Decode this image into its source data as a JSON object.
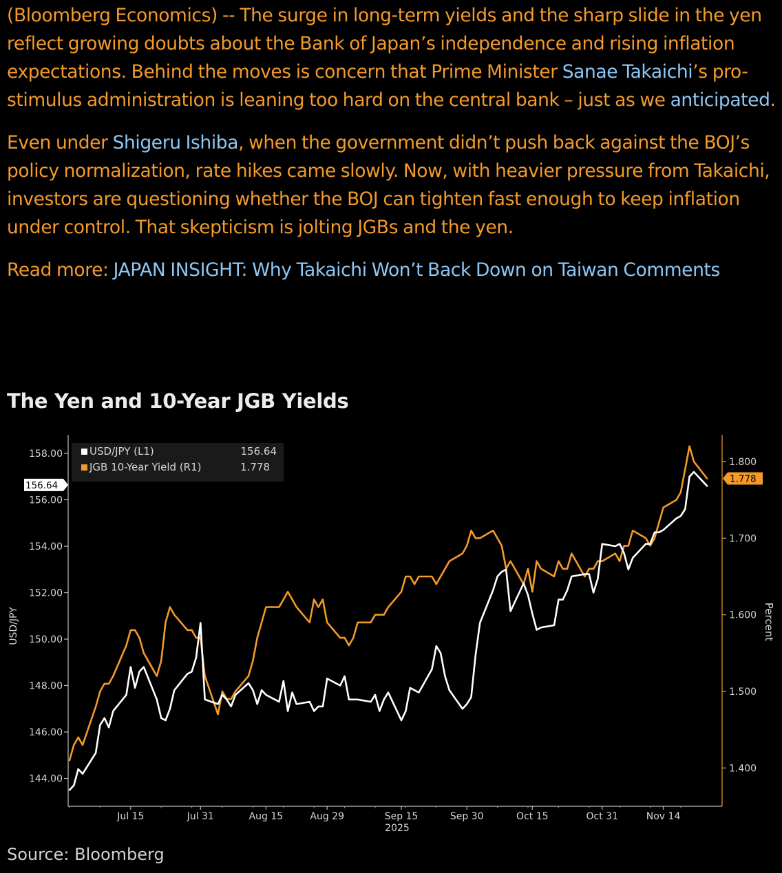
{
  "article": {
    "p1": {
      "a": "(Bloomberg Economics) -- The surge in long-term yields and the sharp slide in the yen reflect growing doubts about the Bank of Japan’s independence and rising inflation expectations. Behind the moves is concern that Prime Minister ",
      "link1": "Sanae Takaichi",
      "b": "’s pro-stimulus administration is leaning too hard on the central bank – just as we ",
      "link2": "anticipated",
      "c": "."
    },
    "p2": {
      "a": "Even under ",
      "link1": "Shigeru Ishiba",
      "b": ", when the government didn’t push back against the BOJ’s policy normalization, rate hikes came slowly. Now, with heavier pressure from Takaichi, investors are questioning whether the BOJ can tighten fast enough to keep inflation under control. That skepticism is jolting JGBs and the yen."
    },
    "p3": {
      "a": "Read more: ",
      "link1": "JAPAN INSIGHT: Why Takaichi Won’t Back Down on Taiwan Comments"
    }
  },
  "source": "Source: Bloomberg",
  "colors": {
    "usdjpy": "#ffffff",
    "jgb": "#f39a2b",
    "text": "#f39a2b",
    "link": "#8ec7f5",
    "background": "#000000"
  },
  "chart_data": {
    "type": "line",
    "title": "The Yen and 10-Year JGB Yields",
    "ylabel_left": "USD/JPY",
    "ylabel_right": "Percent",
    "year_label": "2025",
    "ylim_left": [
      142.8,
      158.8
    ],
    "ylim_right": [
      1.35,
      1.835
    ],
    "yticks_left": [
      "158.00",
      "156.00",
      "154.00",
      "152.00",
      "150.00",
      "148.00",
      "146.00",
      "144.00"
    ],
    "yticks_right": [
      "1.800",
      "1.700",
      "1.600",
      "1.500",
      "1.400"
    ],
    "x_range": [
      "2025-07-01",
      "2025-11-24"
    ],
    "xtick_dates": [
      "2025-07-15",
      "2025-07-31",
      "2025-08-15",
      "2025-08-29",
      "2025-09-15",
      "2025-09-30",
      "2025-10-15",
      "2025-10-31",
      "2025-11-14"
    ],
    "xtick_labels": [
      "Jul 15",
      "Jul 31",
      "Aug 15",
      "Aug 29",
      "Sep 15",
      "Sep 30",
      "Oct 15",
      "Oct 31",
      "Nov 14"
    ],
    "legend": {
      "position": "top-left",
      "entries": [
        {
          "label": "USD/JPY (L1)",
          "value": "156.64"
        },
        {
          "label": "JGB 10-Year Yield (R1)",
          "value": "1.778"
        }
      ]
    },
    "last_value_tags": {
      "left": "156.64",
      "right": "1.778"
    },
    "series": [
      {
        "name": "USD/JPY (L1)",
        "axis": "left",
        "dates": [
          "2025-07-01",
          "2025-07-02",
          "2025-07-03",
          "2025-07-04",
          "2025-07-07",
          "2025-07-08",
          "2025-07-09",
          "2025-07-10",
          "2025-07-11",
          "2025-07-14",
          "2025-07-15",
          "2025-07-16",
          "2025-07-17",
          "2025-07-18",
          "2025-07-21",
          "2025-07-22",
          "2025-07-23",
          "2025-07-24",
          "2025-07-25",
          "2025-07-28",
          "2025-07-29",
          "2025-07-30",
          "2025-07-31",
          "2025-08-01",
          "2025-08-04",
          "2025-08-05",
          "2025-08-06",
          "2025-08-07",
          "2025-08-08",
          "2025-08-11",
          "2025-08-12",
          "2025-08-13",
          "2025-08-14",
          "2025-08-15",
          "2025-08-18",
          "2025-08-19",
          "2025-08-20",
          "2025-08-21",
          "2025-08-22",
          "2025-08-25",
          "2025-08-26",
          "2025-08-27",
          "2025-08-28",
          "2025-08-29",
          "2025-09-01",
          "2025-09-02",
          "2025-09-03",
          "2025-09-04",
          "2025-09-05",
          "2025-09-08",
          "2025-09-09",
          "2025-09-10",
          "2025-09-11",
          "2025-09-12",
          "2025-09-15",
          "2025-09-16",
          "2025-09-17",
          "2025-09-18",
          "2025-09-19",
          "2025-09-22",
          "2025-09-23",
          "2025-09-24",
          "2025-09-25",
          "2025-09-26",
          "2025-09-29",
          "2025-09-30",
          "2025-10-01",
          "2025-10-02",
          "2025-10-03",
          "2025-10-06",
          "2025-10-07",
          "2025-10-08",
          "2025-10-09",
          "2025-10-10",
          "2025-10-13",
          "2025-10-14",
          "2025-10-15",
          "2025-10-16",
          "2025-10-17",
          "2025-10-20",
          "2025-10-21",
          "2025-10-22",
          "2025-10-23",
          "2025-10-24",
          "2025-10-27",
          "2025-10-28",
          "2025-10-29",
          "2025-10-30",
          "2025-10-31",
          "2025-11-03",
          "2025-11-04",
          "2025-11-05",
          "2025-11-06",
          "2025-11-07",
          "2025-11-10",
          "2025-11-11",
          "2025-11-12",
          "2025-11-13",
          "2025-11-14",
          "2025-11-17",
          "2025-11-18",
          "2025-11-19",
          "2025-11-20",
          "2025-11-21",
          "2025-11-24"
        ],
        "values": [
          143.5,
          143.7,
          144.4,
          144.2,
          145.1,
          146.3,
          146.6,
          146.2,
          146.9,
          147.6,
          148.8,
          147.9,
          148.6,
          148.8,
          147.4,
          146.6,
          146.5,
          147.0,
          147.8,
          148.5,
          148.6,
          149.2,
          150.7,
          147.4,
          147.2,
          147.6,
          147.4,
          147.1,
          147.6,
          148.1,
          147.8,
          147.2,
          147.8,
          147.6,
          147.3,
          148.2,
          146.9,
          147.7,
          147.2,
          147.3,
          146.9,
          147.1,
          147.1,
          148.3,
          148.0,
          148.4,
          147.4,
          147.4,
          147.4,
          147.3,
          147.6,
          146.9,
          147.4,
          147.7,
          146.5,
          146.9,
          147.9,
          147.8,
          147.7,
          148.7,
          149.7,
          149.4,
          148.4,
          147.8,
          147.0,
          147.2,
          147.5,
          149.3,
          150.7,
          152.1,
          152.7,
          152.9,
          153.0,
          151.2,
          152.4,
          151.9,
          151.1,
          150.4,
          150.5,
          150.6,
          151.7,
          151.7,
          152.1,
          152.7,
          152.8,
          152.8,
          152.0,
          152.6,
          154.1,
          154.0,
          154.1,
          153.7,
          153.0,
          153.5,
          154.1,
          154.1,
          154.6,
          154.6,
          154.7,
          155.2,
          155.3,
          155.6,
          157.0,
          157.2,
          156.6
        ]
      },
      {
        "name": "JGB 10-Year Yield (R1)",
        "axis": "right",
        "dates": [
          "2025-07-01",
          "2025-07-02",
          "2025-07-03",
          "2025-07-04",
          "2025-07-07",
          "2025-07-08",
          "2025-07-09",
          "2025-07-10",
          "2025-07-11",
          "2025-07-14",
          "2025-07-15",
          "2025-07-16",
          "2025-07-17",
          "2025-07-18",
          "2025-07-21",
          "2025-07-22",
          "2025-07-23",
          "2025-07-24",
          "2025-07-25",
          "2025-07-28",
          "2025-07-29",
          "2025-07-30",
          "2025-07-31",
          "2025-08-01",
          "2025-08-04",
          "2025-08-05",
          "2025-08-06",
          "2025-08-07",
          "2025-08-08",
          "2025-08-11",
          "2025-08-12",
          "2025-08-13",
          "2025-08-14",
          "2025-08-15",
          "2025-08-18",
          "2025-08-19",
          "2025-08-20",
          "2025-08-21",
          "2025-08-22",
          "2025-08-25",
          "2025-08-26",
          "2025-08-27",
          "2025-08-28",
          "2025-08-29",
          "2025-09-01",
          "2025-09-02",
          "2025-09-03",
          "2025-09-04",
          "2025-09-05",
          "2025-09-08",
          "2025-09-09",
          "2025-09-10",
          "2025-09-11",
          "2025-09-12",
          "2025-09-15",
          "2025-09-16",
          "2025-09-17",
          "2025-09-18",
          "2025-09-19",
          "2025-09-22",
          "2025-09-23",
          "2025-09-24",
          "2025-09-25",
          "2025-09-26",
          "2025-09-29",
          "2025-09-30",
          "2025-10-01",
          "2025-10-02",
          "2025-10-03",
          "2025-10-06",
          "2025-10-07",
          "2025-10-08",
          "2025-10-09",
          "2025-10-10",
          "2025-10-13",
          "2025-10-14",
          "2025-10-15",
          "2025-10-16",
          "2025-10-17",
          "2025-10-20",
          "2025-10-21",
          "2025-10-22",
          "2025-10-23",
          "2025-10-24",
          "2025-10-27",
          "2025-10-28",
          "2025-10-29",
          "2025-10-30",
          "2025-10-31",
          "2025-11-03",
          "2025-11-04",
          "2025-11-05",
          "2025-11-06",
          "2025-11-07",
          "2025-11-10",
          "2025-11-11",
          "2025-11-12",
          "2025-11-13",
          "2025-11-14",
          "2025-11-17",
          "2025-11-18",
          "2025-11-19",
          "2025-11-20",
          "2025-11-21",
          "2025-11-24"
        ],
        "values": [
          1.41,
          1.43,
          1.44,
          1.43,
          1.48,
          1.5,
          1.51,
          1.51,
          1.52,
          1.56,
          1.58,
          1.58,
          1.57,
          1.55,
          1.52,
          1.54,
          1.59,
          1.61,
          1.6,
          1.58,
          1.58,
          1.57,
          1.57,
          1.52,
          1.47,
          1.5,
          1.49,
          1.49,
          1.5,
          1.52,
          1.54,
          1.57,
          1.59,
          1.61,
          1.61,
          1.62,
          1.63,
          1.62,
          1.61,
          1.59,
          1.62,
          1.61,
          1.62,
          1.59,
          1.57,
          1.57,
          1.56,
          1.57,
          1.59,
          1.59,
          1.6,
          1.6,
          1.6,
          1.61,
          1.63,
          1.65,
          1.65,
          1.64,
          1.65,
          1.65,
          1.64,
          1.65,
          1.66,
          1.67,
          1.68,
          1.69,
          1.71,
          1.7,
          1.7,
          1.71,
          1.7,
          1.69,
          1.66,
          1.67,
          1.64,
          1.66,
          1.63,
          1.67,
          1.66,
          1.65,
          1.67,
          1.66,
          1.66,
          1.68,
          1.65,
          1.66,
          1.66,
          1.67,
          1.67,
          1.68,
          1.67,
          1.69,
          1.69,
          1.71,
          1.7,
          1.69,
          1.7,
          1.72,
          1.74,
          1.75,
          1.76,
          1.79,
          1.82,
          1.8,
          1.778
        ]
      }
    ]
  }
}
